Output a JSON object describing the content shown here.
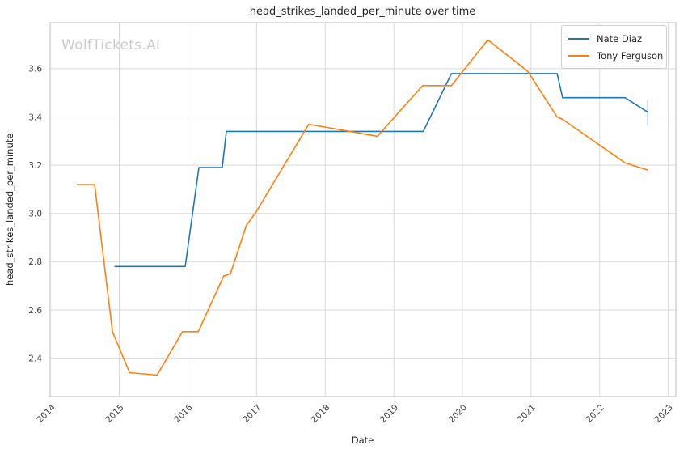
{
  "watermark": "WolfTickets.AI",
  "chart_data": {
    "type": "line",
    "title": "head_strikes_landed_per_minute over time",
    "xlabel": "Date",
    "ylabel": "head_strikes_landed_per_minute",
    "x_ticks": [
      "2014",
      "2015",
      "2016",
      "2017",
      "2018",
      "2019",
      "2020",
      "2021",
      "2022",
      "2023"
    ],
    "y_ticks": [
      "2.4",
      "2.6",
      "2.8",
      "3.0",
      "3.2",
      "3.4",
      "3.6"
    ],
    "xlim": [
      2013.98,
      2023.11
    ],
    "ylim": [
      2.241,
      3.791
    ],
    "grid": true,
    "legend": {
      "position": "upper right",
      "items": [
        "Nate Diaz",
        "Tony Ferguson"
      ]
    },
    "series": [
      {
        "name": "Nate Diaz",
        "color": "#1f77b4",
        "points": [
          [
            2014.93,
            2.78
          ],
          [
            2015.96,
            2.78
          ],
          [
            2016.16,
            3.19
          ],
          [
            2016.5,
            3.19
          ],
          [
            2016.56,
            3.34
          ],
          [
            2019.43,
            3.34
          ],
          [
            2019.84,
            3.58
          ],
          [
            2021.38,
            3.58
          ],
          [
            2021.46,
            3.48
          ],
          [
            2022.37,
            3.48
          ],
          [
            2022.7,
            3.42
          ]
        ]
      },
      {
        "name": "Tony Ferguson",
        "color": "#ff7f0e",
        "points": [
          [
            2014.38,
            3.12
          ],
          [
            2014.64,
            3.12
          ],
          [
            2014.9,
            2.51
          ],
          [
            2015.15,
            2.34
          ],
          [
            2015.55,
            2.33
          ],
          [
            2015.92,
            2.51
          ],
          [
            2016.15,
            2.51
          ],
          [
            2016.52,
            2.74
          ],
          [
            2016.62,
            2.75
          ],
          [
            2016.85,
            2.95
          ],
          [
            2017.0,
            3.01
          ],
          [
            2017.76,
            3.37
          ],
          [
            2018.76,
            3.32
          ],
          [
            2019.42,
            3.53
          ],
          [
            2019.84,
            3.53
          ],
          [
            2020.37,
            3.72
          ],
          [
            2020.95,
            3.59
          ],
          [
            2021.38,
            3.4
          ],
          [
            2021.46,
            3.39
          ],
          [
            2022.37,
            3.21
          ],
          [
            2022.7,
            3.18
          ]
        ]
      }
    ],
    "end_error_bar": {
      "series": "Nate Diaz",
      "x": 2022.7,
      "y_low": 3.365,
      "y_high": 3.47,
      "color": "#aacfe8"
    }
  }
}
